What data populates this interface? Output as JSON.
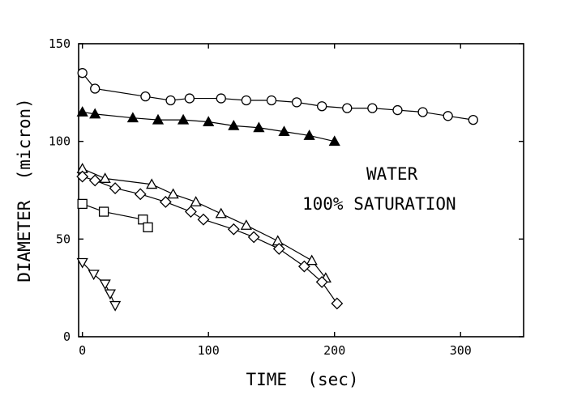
{
  "chart_data": {
    "type": "scatter",
    "title": "",
    "xlabel": "TIME  (sec)",
    "ylabel": "DIAMETER  (micron)",
    "xlim": [
      -3,
      350
    ],
    "ylim": [
      0,
      150
    ],
    "x_ticks": [
      0,
      100,
      200,
      300
    ],
    "y_ticks": [
      0,
      50,
      100,
      150
    ],
    "grid": false,
    "annotations": [
      "WATER",
      "100% SATURATION"
    ],
    "series": [
      {
        "marker": "circle-open",
        "x": [
          0,
          10,
          50,
          70,
          85,
          110,
          130,
          150,
          170,
          190,
          210,
          230,
          250,
          270,
          290,
          310
        ],
        "y": [
          135,
          127,
          123,
          121,
          122,
          122,
          121,
          121,
          120,
          118,
          117,
          117,
          116,
          115,
          113,
          111
        ]
      },
      {
        "marker": "triangle-filled",
        "x": [
          0,
          10,
          40,
          60,
          80,
          100,
          120,
          140,
          160,
          180,
          200
        ],
        "y": [
          115,
          114,
          112,
          111,
          111,
          110,
          108,
          107,
          105,
          103,
          100
        ]
      },
      {
        "marker": "triangle-open",
        "x": [
          0,
          18,
          55,
          72,
          90,
          110,
          130,
          155,
          182,
          193
        ],
        "y": [
          86,
          81,
          78,
          73,
          69,
          63,
          57,
          49,
          39,
          30
        ]
      },
      {
        "marker": "diamond-open",
        "x": [
          0,
          10,
          26,
          46,
          66,
          86,
          96,
          120,
          136,
          156,
          176,
          190,
          202
        ],
        "y": [
          82,
          80,
          76,
          73,
          69,
          64,
          60,
          55,
          51,
          45,
          36,
          28,
          17
        ]
      },
      {
        "marker": "square-open",
        "x": [
          0,
          17,
          48,
          52
        ],
        "y": [
          68,
          64,
          60,
          56
        ]
      },
      {
        "marker": "triangle-down-open",
        "x": [
          0,
          9,
          18,
          22,
          26
        ],
        "y": [
          38,
          32,
          27,
          22,
          16
        ]
      }
    ]
  }
}
